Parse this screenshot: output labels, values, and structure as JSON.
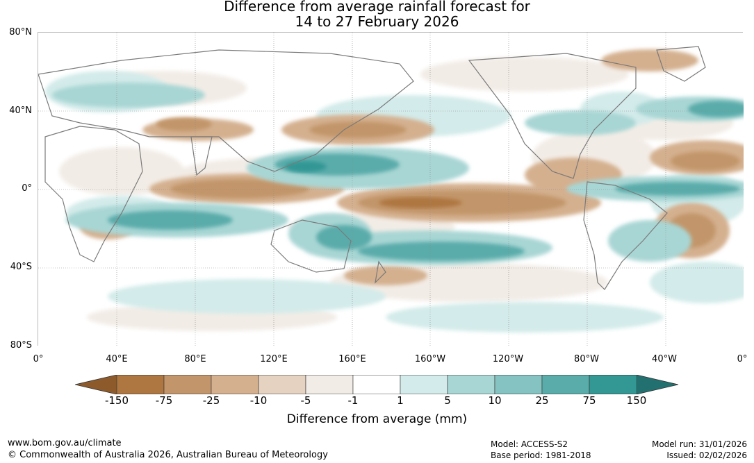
{
  "title": {
    "line1": "Difference from average rainfall forecast for",
    "line2": "14 to 27 February 2026"
  },
  "map": {
    "latitude_labels": [
      "80°N",
      "40°N",
      "0°",
      "40°S",
      "80°S"
    ],
    "longitude_labels": [
      "0°",
      "40°E",
      "80°E",
      "120°E",
      "160°E",
      "160°W",
      "120°W",
      "80°W",
      "40°W",
      "0°"
    ]
  },
  "legend": {
    "tick_labels": [
      "-150",
      "-75",
      "-25",
      "-10",
      "-5",
      "-1",
      "1",
      "5",
      "10",
      "25",
      "75",
      "150"
    ],
    "colors": [
      "#8d5a2b",
      "#ae7640",
      "#c2966a",
      "#d4b08f",
      "#e5d2c1",
      "#f2ece6",
      "#ffffff",
      "#d3ebea",
      "#a8d6d4",
      "#84c3c1",
      "#5aacaa",
      "#339794",
      "#22706f"
    ],
    "label": "Difference from average (mm)"
  },
  "footer": {
    "website": "www.bom.gov.au/climate",
    "copyright": "© Commonwealth of Australia 2026, Australian Bureau of Meteorology",
    "model": "Model: ACCESS-S2",
    "base_period": "Base period: 1981-2018",
    "model_run": "Model run: 31/01/2026",
    "issued": "Issued: 02/02/2026"
  }
}
